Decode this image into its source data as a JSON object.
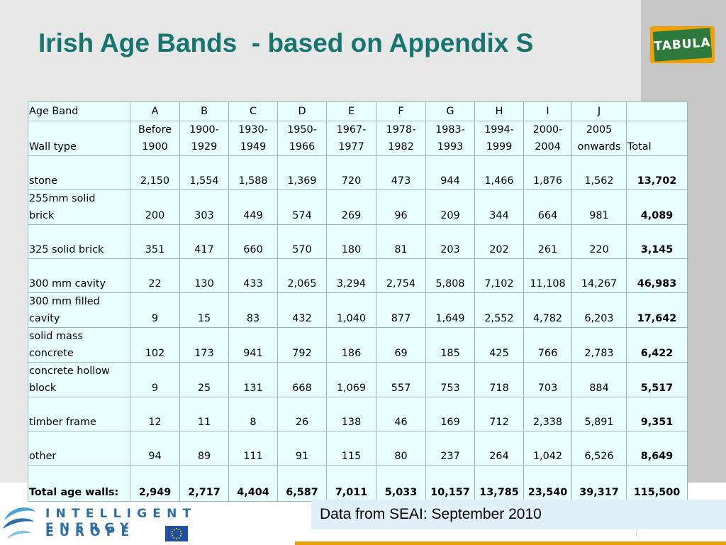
{
  "title": "Irish Age Bands  - based on Appendix S",
  "logo_text": "TABULA",
  "table": {
    "header": [
      "Age Band",
      "A",
      "B",
      "C",
      "D",
      "E",
      "F",
      "G",
      "H",
      "I",
      "J",
      ""
    ],
    "subheader": {
      "label": "Wall type",
      "periods": [
        [
          "Before",
          "1900"
        ],
        [
          "1900-",
          "1929"
        ],
        [
          "1930-",
          "1949"
        ],
        [
          "1950-",
          "1966"
        ],
        [
          "1967-",
          "1977"
        ],
        [
          "1978-",
          "1982"
        ],
        [
          "1983-",
          "1993"
        ],
        [
          "1994-",
          "1999"
        ],
        [
          "2000-",
          "2004"
        ],
        [
          "2005",
          "onwards"
        ]
      ],
      "total_label": "Total"
    },
    "rows": [
      {
        "label": [
          "stone"
        ],
        "values": [
          "2,150",
          "1,554",
          "1,588",
          "1,369",
          "720",
          "473",
          "944",
          "1,466",
          "1,876",
          "1,562"
        ],
        "total": "13,702"
      },
      {
        "label": [
          "255mm solid",
          "brick"
        ],
        "values": [
          "200",
          "303",
          "449",
          "574",
          "269",
          "96",
          "209",
          "344",
          "664",
          "981"
        ],
        "total": "4,089"
      },
      {
        "label": [
          "325 solid brick"
        ],
        "values": [
          "351",
          "417",
          "660",
          "570",
          "180",
          "81",
          "203",
          "202",
          "261",
          "220"
        ],
        "total": "3,145"
      },
      {
        "label": [
          "300 mm cavity"
        ],
        "values": [
          "22",
          "130",
          "433",
          "2,065",
          "3,294",
          "2,754",
          "5,808",
          "7,102",
          "11,108",
          "14,267"
        ],
        "total": "46,983"
      },
      {
        "label": [
          "300 mm filled",
          "cavity"
        ],
        "values": [
          "9",
          "15",
          "83",
          "432",
          "1,040",
          "877",
          "1,649",
          "2,552",
          "4,782",
          "6,203"
        ],
        "total": "17,642"
      },
      {
        "label": [
          "solid mass",
          "concrete"
        ],
        "values": [
          "102",
          "173",
          "941",
          "792",
          "186",
          "69",
          "185",
          "425",
          "766",
          "2,783"
        ],
        "total": "6,422"
      },
      {
        "label": [
          "concrete hollow",
          "block"
        ],
        "values": [
          "9",
          "25",
          "131",
          "668",
          "1,069",
          "557",
          "753",
          "718",
          "703",
          "884"
        ],
        "total": "5,517"
      },
      {
        "label": [
          "timber frame"
        ],
        "values": [
          "12",
          "11",
          "8",
          "26",
          "138",
          "46",
          "169",
          "712",
          "2,338",
          "5,891"
        ],
        "total": "9,351"
      },
      {
        "label": [
          "other"
        ],
        "values": [
          "94",
          "89",
          "111",
          "91",
          "115",
          "80",
          "237",
          "264",
          "1,042",
          "6,526"
        ],
        "total": "8,649"
      }
    ],
    "totals_row": {
      "label": "Total age walls:",
      "values": [
        "2,949",
        "2,717",
        "4,404",
        "6,587",
        "7,011",
        "5,033",
        "10,157",
        "13,785",
        "23,540",
        "39,317"
      ],
      "total": "115,500"
    }
  },
  "source_note": "Data from SEAI: September 2010",
  "footer_logo": {
    "line1": "INTELLIGENT ENERGY",
    "line2": "EUROPE"
  },
  "colors": {
    "title": "#17756f",
    "table_bg": "#e8ffff",
    "note_bg": "#e0f0f8",
    "accent": "#e8a100"
  }
}
